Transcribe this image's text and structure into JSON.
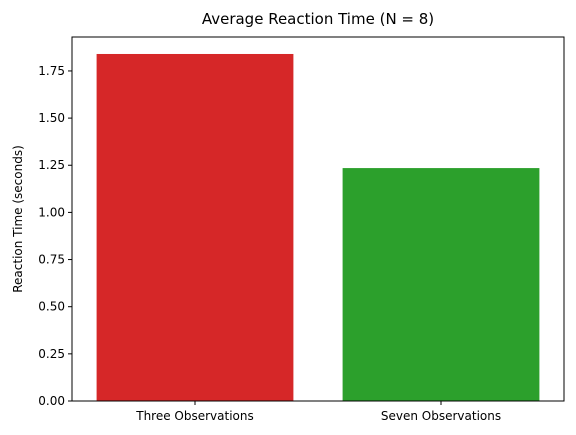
{
  "chart_data": {
    "type": "bar",
    "title": "Average Reaction Time (N = 8)",
    "xlabel": "",
    "ylabel": "Reaction Time (seconds)",
    "categories": [
      "Three Observations",
      "Seven Observations"
    ],
    "values": [
      1.84,
      1.235
    ],
    "colors": [
      "#d62728",
      "#2ca02c"
    ],
    "ylim": [
      0,
      1.93
    ],
    "yticks": [
      0.0,
      0.25,
      0.5,
      0.75,
      1.0,
      1.25,
      1.5,
      1.75
    ],
    "ytick_labels": [
      "0.00",
      "0.25",
      "0.50",
      "0.75",
      "1.00",
      "1.25",
      "1.50",
      "1.75"
    ],
    "grid": false,
    "legend": "none"
  }
}
